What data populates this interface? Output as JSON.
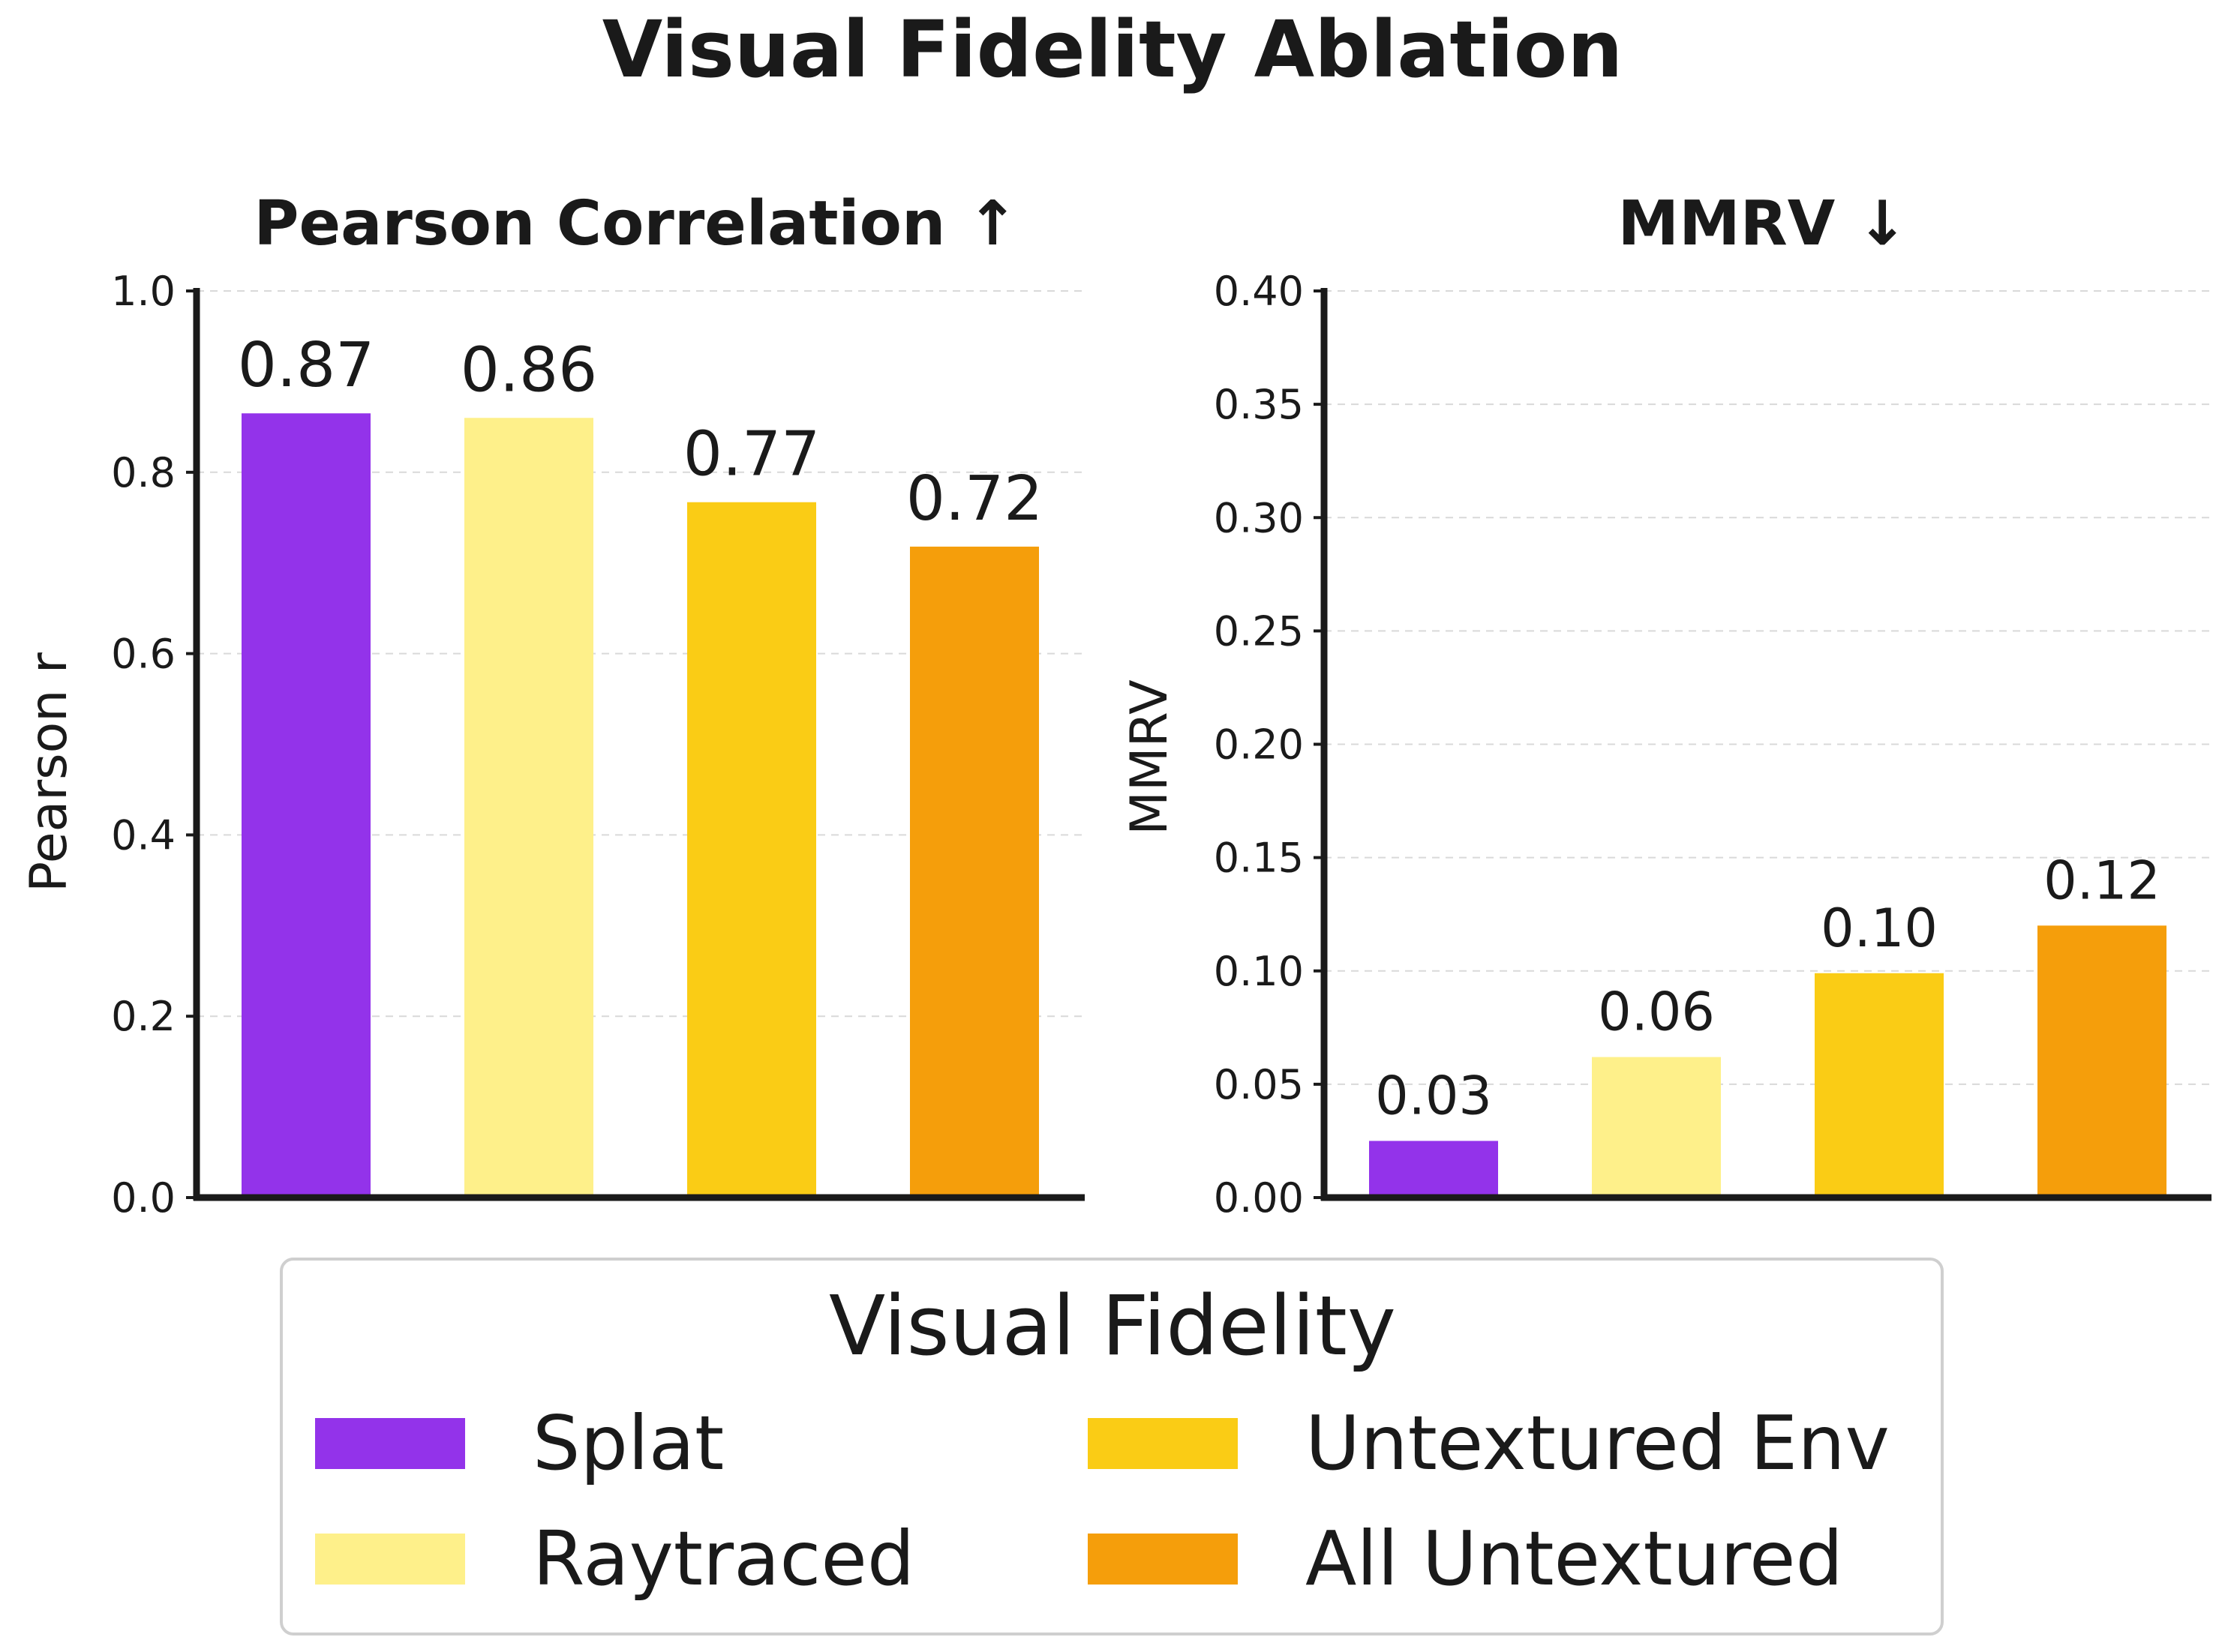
{
  "figure": {
    "title": "Visual Fidelity Ablation"
  },
  "chart_data": [
    {
      "type": "bar",
      "title": "Pearson Correlation ↑",
      "xlabel": "",
      "ylabel": "Pearson r",
      "categories": [
        "Splat",
        "Raytraced",
        "Untextured Env",
        "All Untextured"
      ],
      "values": [
        0.865,
        0.86,
        0.767,
        0.718
      ],
      "value_labels": [
        "0.87",
        "0.86",
        "0.77",
        "0.72"
      ],
      "ylim": [
        0,
        1.0
      ],
      "yticks": [
        0.0,
        0.2,
        0.4,
        0.6,
        0.8,
        1.0
      ],
      "ytick_labels": [
        "0.0",
        "0.2",
        "0.4",
        "0.6",
        "0.8",
        "1.0"
      ],
      "grid": true
    },
    {
      "type": "bar",
      "title": "MMRV ↓",
      "xlabel": "",
      "ylabel": "MMRV",
      "categories": [
        "Splat",
        "Raytraced",
        "Untextured Env",
        "All Untextured"
      ],
      "values": [
        0.025,
        0.062,
        0.099,
        0.12
      ],
      "value_labels": [
        "0.03",
        "0.06",
        "0.10",
        "0.12"
      ],
      "ylim": [
        0,
        0.4
      ],
      "yticks": [
        0.0,
        0.05,
        0.1,
        0.15,
        0.2,
        0.25,
        0.3,
        0.35,
        0.4
      ],
      "ytick_labels": [
        "0.00",
        "0.05",
        "0.10",
        "0.15",
        "0.20",
        "0.25",
        "0.30",
        "0.35",
        "0.40"
      ],
      "grid": true
    }
  ],
  "legend": {
    "title": "Visual Fidelity",
    "placement": "bottom-center",
    "items": [
      {
        "label": "Splat",
        "color": "#9333ea"
      },
      {
        "label": "Raytraced",
        "color": "#fef08a"
      },
      {
        "label": "Untextured Env",
        "color": "#facc15"
      },
      {
        "label": "All Untextured",
        "color": "#f59e0b"
      }
    ]
  }
}
